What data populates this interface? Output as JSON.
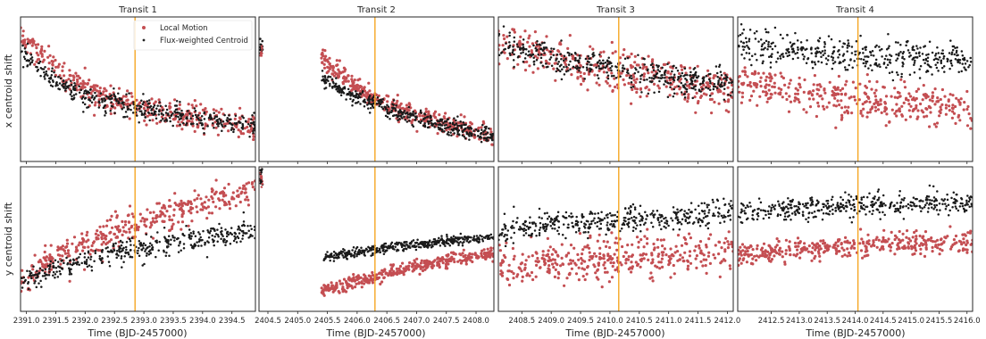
{
  "figure": {
    "ylabel_top": "x centroid shift",
    "ylabel_bottom": "y centroid shift",
    "xlabel": "Time (BJD-2457000)",
    "legend": {
      "location": "top-right of first panel",
      "items": [
        {
          "label": "Local Motion",
          "color": "#c44e52"
        },
        {
          "label": "Flux-weighted Centroid",
          "color": "#222222"
        }
      ]
    },
    "colors": {
      "local_motion": "#c44e52",
      "flux_centroid": "#1a1a1a",
      "transit_line": "#f5a623",
      "axes": "#262626"
    }
  },
  "chart_data": [
    {
      "type": "scatter",
      "title": "Transit 1",
      "row": "x",
      "xlim": [
        2390.9,
        2394.9
      ],
      "ylim": [
        0,
        1
      ],
      "transit_time": 2392.85,
      "xticks": [],
      "series": [
        {
          "name": "Local Motion",
          "trend": [
            [
              2390.9,
              0.88
            ],
            [
              2391.5,
              0.62
            ],
            [
              2392.2,
              0.47
            ],
            [
              2393.0,
              0.37
            ],
            [
              2393.8,
              0.3
            ],
            [
              2394.9,
              0.26
            ]
          ],
          "spread": 0.09
        },
        {
          "name": "Flux-weighted Centroid",
          "trend": [
            [
              2390.9,
              0.76
            ],
            [
              2391.5,
              0.55
            ],
            [
              2392.2,
              0.43
            ],
            [
              2393.0,
              0.36
            ],
            [
              2393.8,
              0.3
            ],
            [
              2394.9,
              0.25
            ]
          ],
          "spread": 0.07
        }
      ]
    },
    {
      "type": "scatter",
      "title": "Transit 2",
      "row": "x",
      "xlim": [
        2404.35,
        2408.3
      ],
      "ylim": [
        0,
        1
      ],
      "transit_time": 2406.3,
      "xticks": [],
      "series": [
        {
          "name": "Local Motion",
          "trend": [
            [
              2405.4,
              0.72
            ],
            [
              2405.8,
              0.57
            ],
            [
              2406.3,
              0.44
            ],
            [
              2406.9,
              0.33
            ],
            [
              2407.6,
              0.24
            ],
            [
              2408.3,
              0.19
            ]
          ],
          "spread": 0.06
        },
        {
          "name": "Flux-weighted Centroid",
          "trend": [
            [
              2405.4,
              0.58
            ],
            [
              2405.8,
              0.48
            ],
            [
              2406.3,
              0.4
            ],
            [
              2406.9,
              0.31
            ],
            [
              2407.6,
              0.24
            ],
            [
              2408.3,
              0.17
            ]
          ],
          "spread": 0.05
        }
      ]
    },
    {
      "type": "scatter",
      "title": "Transit 3",
      "row": "x",
      "xlim": [
        2408.1,
        2412.1
      ],
      "ylim": [
        0,
        1
      ],
      "transit_time": 2410.15,
      "xticks": [],
      "series": [
        {
          "name": "Local Motion",
          "trend": [
            [
              2408.1,
              0.82
            ],
            [
              2409.0,
              0.73
            ],
            [
              2410.0,
              0.64
            ],
            [
              2411.0,
              0.56
            ],
            [
              2412.1,
              0.5
            ]
          ],
          "spread": 0.13
        },
        {
          "name": "Flux-weighted Centroid",
          "trend": [
            [
              2408.1,
              0.79
            ],
            [
              2409.0,
              0.72
            ],
            [
              2410.0,
              0.65
            ],
            [
              2411.0,
              0.58
            ],
            [
              2412.1,
              0.52
            ]
          ],
          "spread": 0.09
        }
      ]
    },
    {
      "type": "scatter",
      "title": "Transit 4",
      "row": "x",
      "xlim": [
        2411.9,
        2416.1
      ],
      "ylim": [
        0,
        1
      ],
      "transit_time": 2414.05,
      "xticks": [],
      "series": [
        {
          "name": "Local Motion",
          "trend": [
            [
              2411.9,
              0.56
            ],
            [
              2413.0,
              0.48
            ],
            [
              2414.0,
              0.43
            ],
            [
              2415.0,
              0.39
            ],
            [
              2416.1,
              0.37
            ]
          ],
          "spread": 0.12
        },
        {
          "name": "Flux-weighted Centroid",
          "trend": [
            [
              2411.9,
              0.8
            ],
            [
              2413.0,
              0.76
            ],
            [
              2414.0,
              0.73
            ],
            [
              2415.0,
              0.72
            ],
            [
              2416.1,
              0.7
            ]
          ],
          "spread": 0.1
        }
      ]
    },
    {
      "type": "scatter",
      "row": "y",
      "xlim": [
        2390.9,
        2394.9
      ],
      "ylim": [
        0,
        1
      ],
      "transit_time": 2392.85,
      "xticks": [
        "2391.0",
        "2391.5",
        "2392.0",
        "2392.5",
        "2393.0",
        "2393.5",
        "2394.0",
        "2394.5"
      ],
      "series": [
        {
          "name": "Local Motion",
          "trend": [
            [
              2390.9,
              0.22
            ],
            [
              2391.5,
              0.38
            ],
            [
              2392.2,
              0.5
            ],
            [
              2393.0,
              0.62
            ],
            [
              2393.8,
              0.72
            ],
            [
              2394.9,
              0.84
            ]
          ],
          "spread": 0.1
        },
        {
          "name": "Flux-weighted Centroid",
          "trend": [
            [
              2390.9,
              0.2
            ],
            [
              2391.5,
              0.3
            ],
            [
              2392.2,
              0.38
            ],
            [
              2393.0,
              0.44
            ],
            [
              2393.8,
              0.5
            ],
            [
              2394.9,
              0.55
            ]
          ],
          "spread": 0.07
        }
      ]
    },
    {
      "type": "scatter",
      "row": "y",
      "xlim": [
        2404.35,
        2408.3
      ],
      "ylim": [
        0,
        1
      ],
      "transit_time": 2406.3,
      "xticks": [
        "2404.5",
        "2405.0",
        "2405.5",
        "2406.0",
        "2406.5",
        "2407.0",
        "2407.5",
        "2408.0"
      ],
      "series": [
        {
          "name": "Local Motion",
          "trend": [
            [
              2405.4,
              0.14
            ],
            [
              2405.8,
              0.18
            ],
            [
              2406.3,
              0.24
            ],
            [
              2406.9,
              0.31
            ],
            [
              2407.6,
              0.36
            ],
            [
              2408.3,
              0.4
            ]
          ],
          "spread": 0.04
        },
        {
          "name": "Flux-weighted Centroid",
          "trend": [
            [
              2405.4,
              0.37
            ],
            [
              2405.8,
              0.39
            ],
            [
              2406.3,
              0.43
            ],
            [
              2406.9,
              0.46
            ],
            [
              2407.6,
              0.49
            ],
            [
              2408.3,
              0.51
            ]
          ],
          "spread": 0.03
        }
      ]
    },
    {
      "type": "scatter",
      "row": "y",
      "xlim": [
        2408.1,
        2412.1
      ],
      "ylim": [
        0,
        1
      ],
      "transit_time": 2410.15,
      "xticks": [
        "2408.5",
        "2409.0",
        "2409.5",
        "2410.0",
        "2410.5",
        "2411.0",
        "2411.5",
        "2412.0"
      ],
      "series": [
        {
          "name": "Local Motion",
          "trend": [
            [
              2408.1,
              0.3
            ],
            [
              2409.0,
              0.34
            ],
            [
              2410.0,
              0.37
            ],
            [
              2411.0,
              0.4
            ],
            [
              2412.1,
              0.43
            ]
          ],
          "spread": 0.13
        },
        {
          "name": "Flux-weighted Centroid",
          "trend": [
            [
              2408.1,
              0.55
            ],
            [
              2409.0,
              0.6
            ],
            [
              2410.0,
              0.63
            ],
            [
              2411.0,
              0.65
            ],
            [
              2412.1,
              0.68
            ]
          ],
          "spread": 0.08
        }
      ]
    },
    {
      "type": "scatter",
      "row": "y",
      "xlim": [
        2411.9,
        2416.1
      ],
      "ylim": [
        0,
        1
      ],
      "transit_time": 2414.05,
      "xticks": [
        "2412.5",
        "2413.0",
        "2413.5",
        "2414.0",
        "2414.5",
        "2415.0",
        "2415.5",
        "2416.0"
      ],
      "series": [
        {
          "name": "Local Motion",
          "trend": [
            [
              2411.9,
              0.4
            ],
            [
              2413.0,
              0.43
            ],
            [
              2414.0,
              0.45
            ],
            [
              2415.0,
              0.47
            ],
            [
              2416.1,
              0.48
            ]
          ],
          "spread": 0.07
        },
        {
          "name": "Flux-weighted Centroid",
          "trend": [
            [
              2411.9,
              0.68
            ],
            [
              2413.0,
              0.71
            ],
            [
              2414.0,
              0.73
            ],
            [
              2415.0,
              0.74
            ],
            [
              2416.1,
              0.75
            ]
          ],
          "spread": 0.07
        }
      ]
    }
  ]
}
